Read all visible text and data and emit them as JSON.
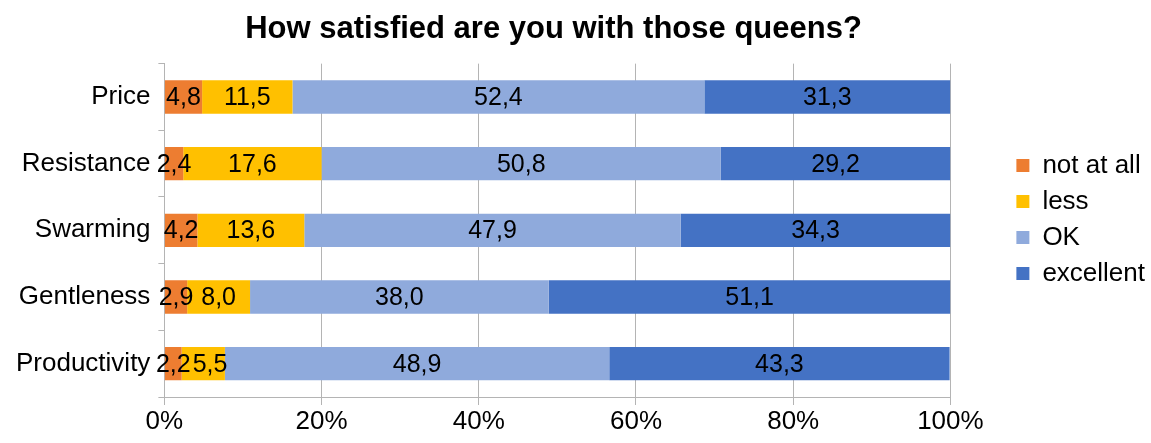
{
  "chart_data": {
    "type": "bar",
    "orientation": "horizontal",
    "stacked": true,
    "title": "How satisfied are you with those queens?",
    "categories": [
      "Price",
      "Resistance",
      "Swarming",
      "Gentleness",
      "Productivity"
    ],
    "series": [
      {
        "name": "not at all",
        "color": "#ed7d31",
        "values": [
          4.8,
          2.4,
          4.2,
          2.9,
          2.2
        ],
        "value_labels": [
          "4,8",
          "2,4",
          "4,2",
          "2,9",
          "2,2"
        ]
      },
      {
        "name": "less",
        "color": "#ffc000",
        "values": [
          11.5,
          17.6,
          13.6,
          8.0,
          5.5
        ],
        "value_labels": [
          "11,5",
          "17,6",
          "13,6",
          "8,0",
          "5,5"
        ]
      },
      {
        "name": "OK",
        "color": "#8faadc",
        "values": [
          52.4,
          50.8,
          47.9,
          38.0,
          48.9
        ],
        "value_labels": [
          "52,4",
          "50,8",
          "47,9",
          "38,0",
          "48,9"
        ]
      },
      {
        "name": "excellent",
        "color": "#4472c4",
        "values": [
          31.3,
          29.2,
          34.3,
          51.1,
          43.3
        ],
        "value_labels": [
          "31,3",
          "29,2",
          "34,3",
          "51,1",
          "43,3"
        ]
      }
    ],
    "xlim": [
      0,
      100
    ],
    "xticks": [
      {
        "value": 0,
        "label": "0%"
      },
      {
        "value": 20,
        "label": "20%"
      },
      {
        "value": 40,
        "label": "40%"
      },
      {
        "value": 60,
        "label": "60%"
      },
      {
        "value": 80,
        "label": "80%"
      },
      {
        "value": 100,
        "label": "100%"
      }
    ],
    "grid": "x",
    "legend": "right"
  }
}
